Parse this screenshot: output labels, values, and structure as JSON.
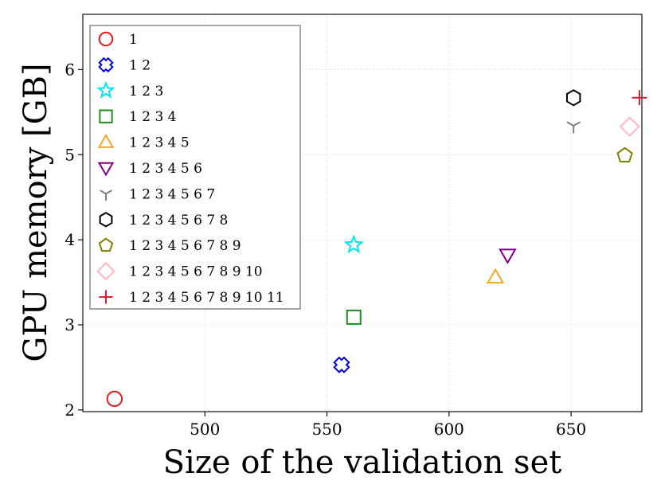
{
  "chart_data": {
    "type": "scatter",
    "title": "",
    "xlabel": "Size of the validation set",
    "ylabel": "GPU memory [GB]",
    "xlim": [
      450,
      679
    ],
    "ylim": [
      1.98,
      6.65
    ],
    "xticks": [
      500,
      550,
      600,
      650
    ],
    "yticks": [
      2,
      3,
      4,
      5,
      6
    ],
    "grid": true,
    "legend_position": "top-left",
    "series": [
      {
        "name": "1",
        "x": 463,
        "y": 2.13,
        "marker": "circle",
        "color": "#e41a1c"
      },
      {
        "name": "1 2",
        "x": 556,
        "y": 2.53,
        "marker": "x-cross",
        "color": "#0000dd"
      },
      {
        "name": "1 2 3",
        "x": 561,
        "y": 3.94,
        "marker": "star",
        "color": "#00e5ee"
      },
      {
        "name": "1 2 3 4",
        "x": 561,
        "y": 3.09,
        "marker": "square",
        "color": "#228b22"
      },
      {
        "name": "1 2 3 4 5",
        "x": 619,
        "y": 3.56,
        "marker": "triangle-up",
        "color": "#f5a623"
      },
      {
        "name": "1 2 3 4 5 6",
        "x": 624,
        "y": 3.82,
        "marker": "triangle-down",
        "color": "#800080"
      },
      {
        "name": "1 2 3 4 5 6 7",
        "x": 651,
        "y": 5.34,
        "marker": "tri-down",
        "color": "#808080"
      },
      {
        "name": "1 2 3 4 5 6 7 8",
        "x": 651,
        "y": 5.67,
        "marker": "hexagon",
        "color": "#000000"
      },
      {
        "name": "1 2 3 4 5 6 7 8 9",
        "x": 672,
        "y": 4.99,
        "marker": "pentagon",
        "color": "#808000"
      },
      {
        "name": "1 2 3 4 5 6 7 8 9 10",
        "x": 674,
        "y": 5.33,
        "marker": "diamond",
        "color": "#ffb6c1"
      },
      {
        "name": "1 2 3 4 5 6 7 8 9 10 11",
        "x": 678,
        "y": 5.67,
        "marker": "plus",
        "color": "#cc2233"
      }
    ]
  }
}
